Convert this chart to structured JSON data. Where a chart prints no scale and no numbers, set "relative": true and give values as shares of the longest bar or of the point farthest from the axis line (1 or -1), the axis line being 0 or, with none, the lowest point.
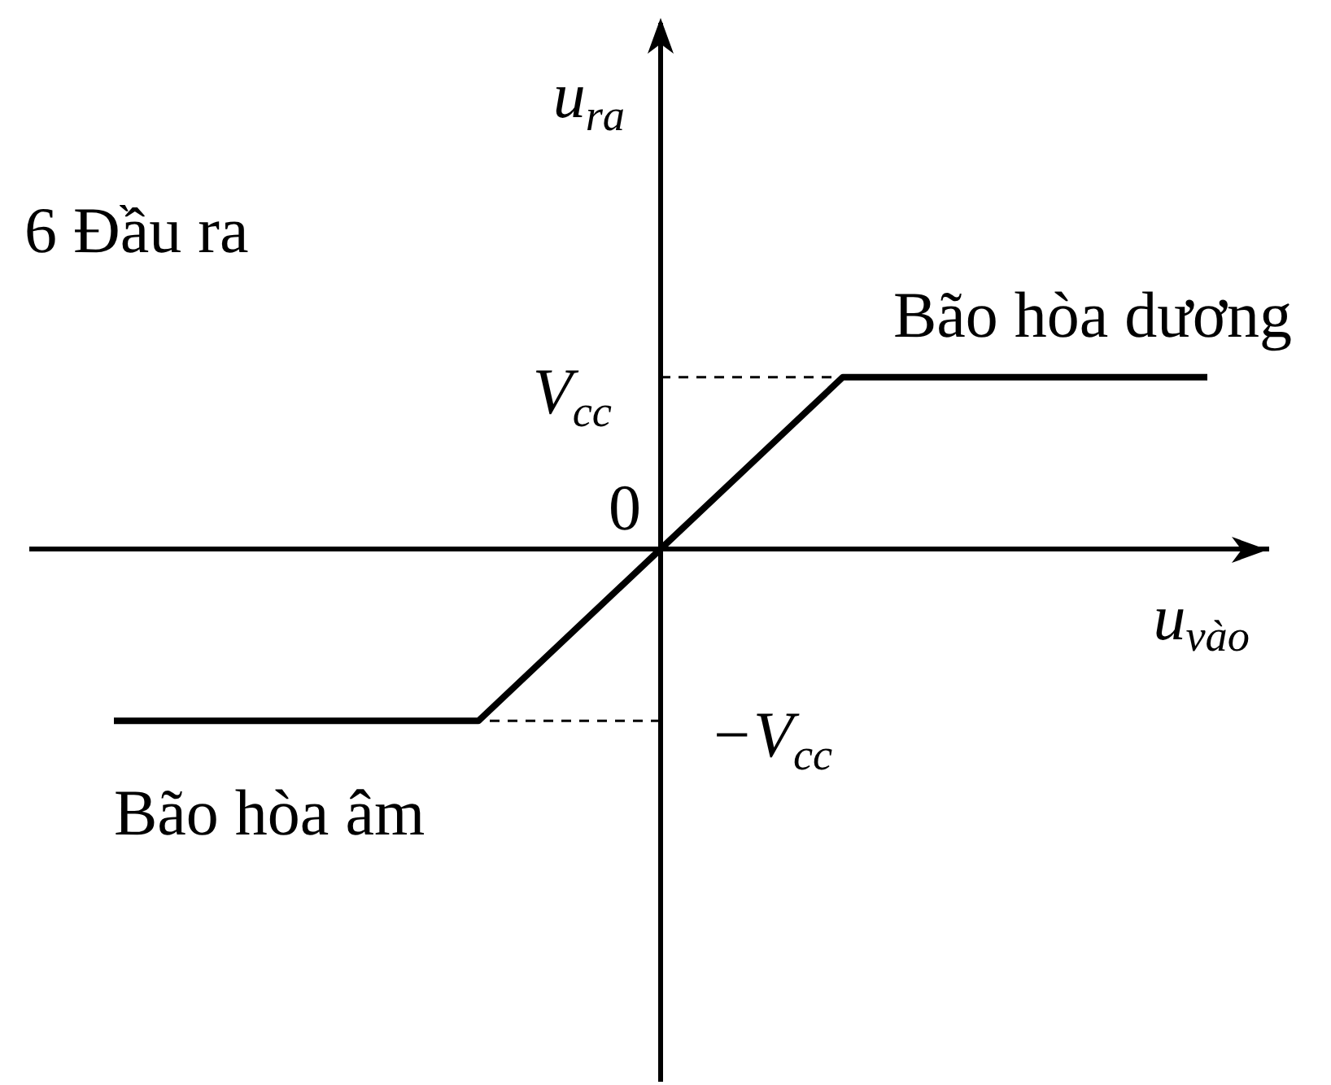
{
  "chart_data": {
    "type": "line",
    "xlabel": "u$_{vào}$",
    "ylabel": "u$_{ra}$",
    "relative": true,
    "categories": [
      null,
      null,
      null,
      null,
      null,
      null,
      null,
      null,
      null,
      null,
      null,
      null,
      null,
      null,
      null
    ],
    "series": [
      {
        "color": "#000000",
        "values": [
          null,
          -1,
          -1,
          -1,
          -1,
          -1,
          -0.5,
          0,
          0.5,
          1,
          1,
          1,
          1,
          1,
          null
        ]
      }
    ],
    "ref_lines": [
      {
        "axis": "y",
        "value": 1,
        "label": "V$_{cc}$",
        "line_style": "dashed",
        "color": "#000000"
      },
      {
        "axis": "y",
        "value": -1,
        "label": "−V$_{cc}$",
        "line_style": "dashed",
        "color": "#000000"
      }
    ],
    "annotations": [
      "6 Đầu ra",
      "Bão hòa dương",
      "Bão hòa âm",
      "0"
    ],
    "grid": false
  }
}
